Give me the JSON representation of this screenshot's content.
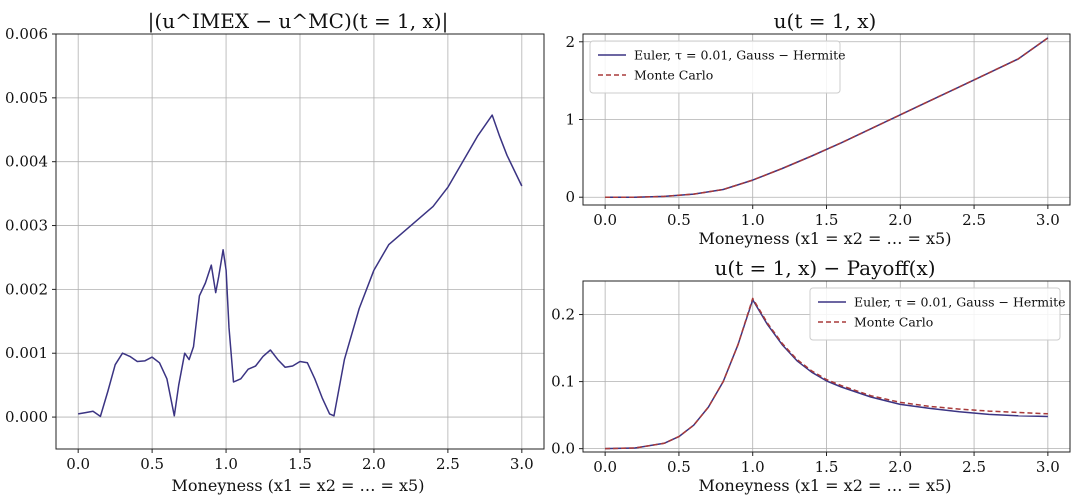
{
  "colors": {
    "euler": "#3b3483",
    "mc": "#a83a3a",
    "grid": "#b0b0b0"
  },
  "chart_data": [
    {
      "type": "line",
      "title": "|(u^IMEX − u^MC)(t = 1, x)|",
      "xlabel": "Moneyness (x1 = x2 = … = x5)",
      "ylabel": "",
      "xlim": [
        -0.15,
        3.15
      ],
      "ylim": [
        -0.0005,
        0.006
      ],
      "xticks": [
        "0.0",
        "0.5",
        "1.0",
        "1.5",
        "2.0",
        "2.5",
        "3.0"
      ],
      "yticks": [
        "0.000",
        "0.001",
        "0.002",
        "0.003",
        "0.004",
        "0.005",
        "0.006"
      ],
      "grid": true,
      "series": [
        {
          "name": "",
          "color": "#3b3483",
          "dash": false,
          "x": [
            0.0,
            0.05,
            0.1,
            0.15,
            0.2,
            0.25,
            0.3,
            0.35,
            0.4,
            0.45,
            0.5,
            0.55,
            0.6,
            0.65,
            0.68,
            0.72,
            0.75,
            0.78,
            0.82,
            0.86,
            0.9,
            0.93,
            0.95,
            0.98,
            1.0,
            1.02,
            1.05,
            1.1,
            1.15,
            1.2,
            1.25,
            1.3,
            1.35,
            1.4,
            1.45,
            1.5,
            1.55,
            1.6,
            1.65,
            1.7,
            1.73,
            1.8,
            1.9,
            2.0,
            2.1,
            2.2,
            2.3,
            2.4,
            2.5,
            2.6,
            2.7,
            2.8,
            2.85,
            2.9,
            3.0
          ],
          "y": [
            5e-05,
            7e-05,
            9e-05,
            1e-05,
            0.0004,
            0.00082,
            0.001,
            0.00095,
            0.00087,
            0.00088,
            0.00094,
            0.00085,
            0.0006,
            2e-05,
            0.0005,
            0.001,
            0.0009,
            0.0011,
            0.0019,
            0.0021,
            0.00238,
            0.00195,
            0.0022,
            0.00262,
            0.0023,
            0.0014,
            0.00055,
            0.0006,
            0.00075,
            0.0008,
            0.00095,
            0.00105,
            0.0009,
            0.00078,
            0.0008,
            0.00087,
            0.00085,
            0.0006,
            0.0003,
            5e-05,
            2e-05,
            0.0009,
            0.0017,
            0.0023,
            0.0027,
            0.0029,
            0.0031,
            0.0033,
            0.0036,
            0.004,
            0.0044,
            0.00473,
            0.0044,
            0.0041,
            0.00362
          ]
        }
      ]
    },
    {
      "type": "line",
      "title": "u(t = 1, x)",
      "xlabel": "Moneyness (x1 = x2 = … = x5)",
      "ylabel": "",
      "xlim": [
        -0.15,
        3.15
      ],
      "ylim": [
        -0.1,
        2.1
      ],
      "xticks": [
        "0.0",
        "0.5",
        "1.0",
        "1.5",
        "2.0",
        "2.5",
        "3.0"
      ],
      "yticks": [
        "0",
        "1",
        "2"
      ],
      "grid": true,
      "legend": "top-left",
      "series": [
        {
          "name": "Euler, τ = 0.01, Gauss − Hermite",
          "color": "#3b3483",
          "dash": false,
          "x": [
            0.0,
            0.2,
            0.4,
            0.6,
            0.8,
            1.0,
            1.2,
            1.4,
            1.6,
            1.8,
            2.0,
            2.2,
            2.4,
            2.6,
            2.8,
            3.0
          ],
          "y": [
            0.0,
            0.0,
            0.01,
            0.04,
            0.1,
            0.22,
            0.37,
            0.53,
            0.7,
            0.88,
            1.06,
            1.24,
            1.42,
            1.6,
            1.78,
            2.05
          ]
        },
        {
          "name": "Monte Carlo",
          "color": "#a83a3a",
          "dash": true,
          "x": [
            0.0,
            0.2,
            0.4,
            0.6,
            0.8,
            1.0,
            1.2,
            1.4,
            1.6,
            1.8,
            2.0,
            2.2,
            2.4,
            2.6,
            2.8,
            3.0
          ],
          "y": [
            0.0,
            0.0,
            0.01,
            0.04,
            0.1,
            0.22,
            0.37,
            0.53,
            0.7,
            0.88,
            1.06,
            1.24,
            1.42,
            1.6,
            1.78,
            2.05
          ]
        }
      ]
    },
    {
      "type": "line",
      "title": "u(t = 1, x) − Payoff(x)",
      "xlabel": "Moneyness (x1 = x2 = … = x5)",
      "ylabel": "",
      "xlim": [
        -0.15,
        3.15
      ],
      "ylim": [
        -0.005,
        0.25
      ],
      "xticks": [
        "0.0",
        "0.5",
        "1.0",
        "1.5",
        "2.0",
        "2.5",
        "3.0"
      ],
      "yticks": [
        "0.0",
        "0.1",
        "0.2"
      ],
      "grid": true,
      "legend": "top-right",
      "series": [
        {
          "name": "Euler, τ = 0.01, Gauss − Hermite",
          "color": "#3b3483",
          "dash": false,
          "x": [
            0.0,
            0.2,
            0.4,
            0.5,
            0.6,
            0.7,
            0.8,
            0.9,
            1.0,
            1.1,
            1.2,
            1.3,
            1.4,
            1.5,
            1.6,
            1.8,
            2.0,
            2.2,
            2.4,
            2.6,
            2.8,
            3.0
          ],
          "y": [
            0.0,
            0.001,
            0.008,
            0.018,
            0.035,
            0.062,
            0.1,
            0.155,
            0.222,
            0.185,
            0.155,
            0.131,
            0.114,
            0.101,
            0.092,
            0.077,
            0.066,
            0.06,
            0.055,
            0.051,
            0.049,
            0.048
          ]
        },
        {
          "name": "Monte Carlo",
          "color": "#a83a3a",
          "dash": true,
          "x": [
            0.0,
            0.2,
            0.4,
            0.5,
            0.6,
            0.7,
            0.8,
            0.9,
            1.0,
            1.1,
            1.2,
            1.3,
            1.4,
            1.5,
            1.6,
            1.8,
            2.0,
            2.2,
            2.4,
            2.6,
            2.8,
            3.0
          ],
          "y": [
            0.0,
            0.001,
            0.008,
            0.018,
            0.035,
            0.062,
            0.1,
            0.155,
            0.224,
            0.187,
            0.157,
            0.133,
            0.116,
            0.103,
            0.094,
            0.079,
            0.069,
            0.063,
            0.059,
            0.056,
            0.054,
            0.052
          ]
        }
      ]
    }
  ]
}
